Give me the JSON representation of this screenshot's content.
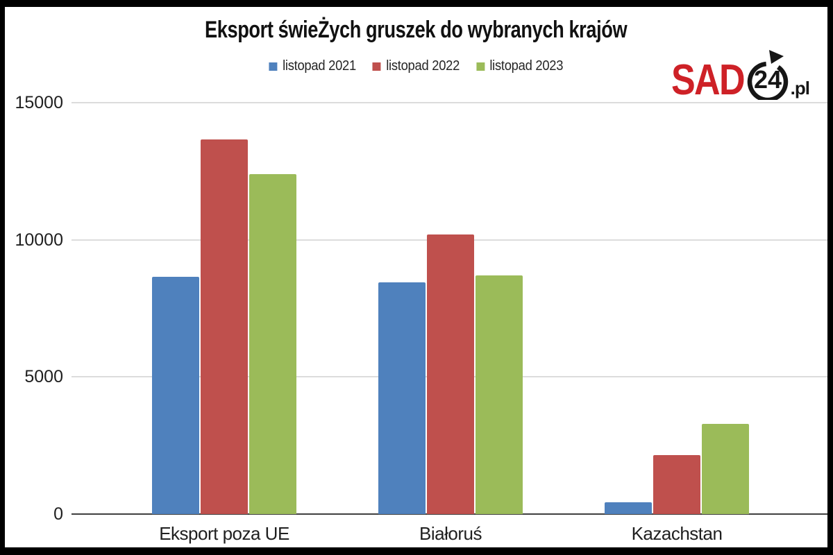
{
  "title": "Eksport świeŻych gruszek do wybranych krajów",
  "logo": {
    "brand": "SAD",
    "badge": "24",
    "suffix": ".pl",
    "brand_color": "#ce2127",
    "ink_color": "#161616"
  },
  "chart_data": {
    "type": "bar",
    "title": "Eksport świeŻych gruszek do wybranych krajów",
    "categories": [
      "Eksport poza UE",
      "Białoruś",
      "Kazachstan"
    ],
    "series": [
      {
        "name": "listopad 2021",
        "color": "#4f81bd",
        "values": [
          8650,
          8450,
          420
        ]
      },
      {
        "name": "listopad 2022",
        "color": "#bf504d",
        "values": [
          13650,
          10200,
          2150
        ]
      },
      {
        "name": "listopad 2023",
        "color": "#9bbb59",
        "values": [
          12400,
          8700,
          3290
        ]
      }
    ],
    "xlabel": "",
    "ylabel": "",
    "ylim": [
      0,
      15000
    ],
    "yticks": [
      0,
      5000,
      10000,
      15000
    ],
    "grid": true,
    "legend_position": "top-center",
    "gridline_color": "#dcdcdc",
    "axis_line_color": "#3f3f3f"
  }
}
